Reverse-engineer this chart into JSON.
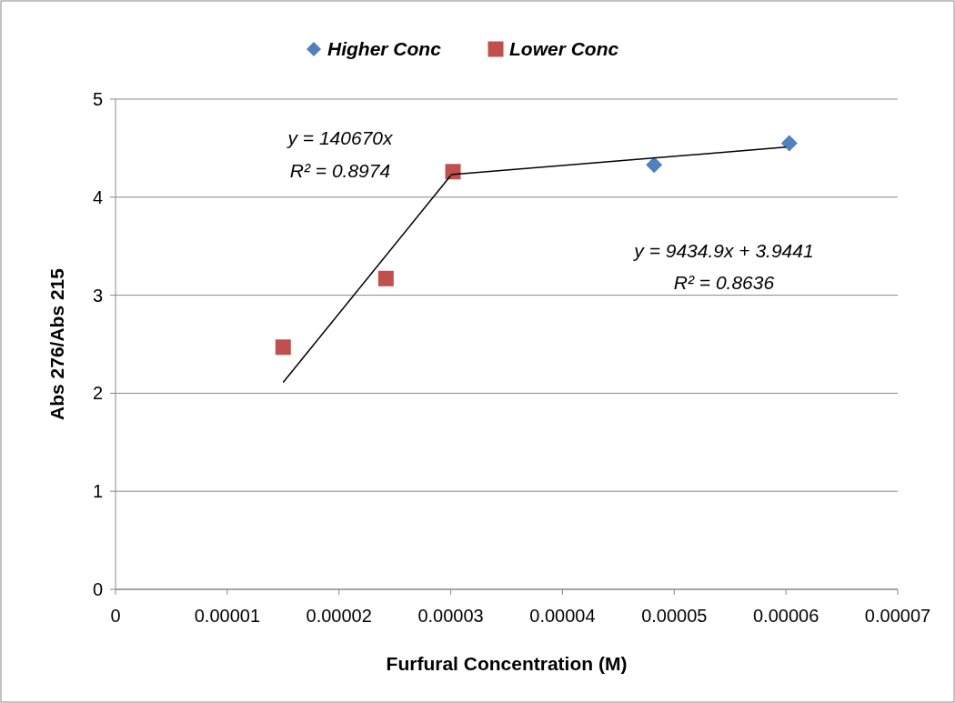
{
  "chart_data": {
    "type": "scatter",
    "xlabel": "Furfural Concentration (M)",
    "ylabel": "Abs 276/Abs 215",
    "xlim": [
      0,
      7e-05
    ],
    "xticks": [
      0,
      {
        "value": 1e-05,
        "label": "0.00001"
      },
      {
        "value": 2e-05,
        "label": "0.00002"
      },
      {
        "value": 3e-05,
        "label": "0.00003"
      },
      {
        "value": 4e-05,
        "label": "0.00004"
      },
      {
        "value": 5e-05,
        "label": "0.00005"
      },
      {
        "value": 6e-05,
        "label": "0.00006"
      },
      {
        "value": 7e-05,
        "label": "0.00007"
      }
    ],
    "ylim": [
      0,
      5
    ],
    "yticks": [
      0,
      1,
      2,
      3,
      4,
      5
    ],
    "grid": "y",
    "legend": "top",
    "series": [
      {
        "name": "Higher Conc",
        "marker": "diamond",
        "color": "#4f81bd",
        "x": [
          4.82e-05,
          6.03e-05
        ],
        "values": [
          4.33,
          4.55
        ]
      },
      {
        "name": "Lower Conc",
        "marker": "square",
        "color": "#c0504d",
        "x": [
          1.5e-05,
          2.42e-05,
          3.02e-05
        ],
        "values": [
          2.47,
          3.17,
          4.26
        ]
      },
      {
        "type": "line",
        "marker": "none",
        "color": "#000000",
        "x": [
          1.5e-05,
          3e-05
        ],
        "values": [
          2.11,
          4.22
        ]
      },
      {
        "type": "line",
        "marker": "none",
        "color": "#000000",
        "x": [
          3e-05,
          6e-05
        ],
        "values": [
          4.23,
          4.51
        ]
      }
    ],
    "annotations": [
      "y = 140670x",
      "R² = 0.8974",
      "y = 9434.9x + 3.9441",
      "R² = 0.8636"
    ]
  }
}
